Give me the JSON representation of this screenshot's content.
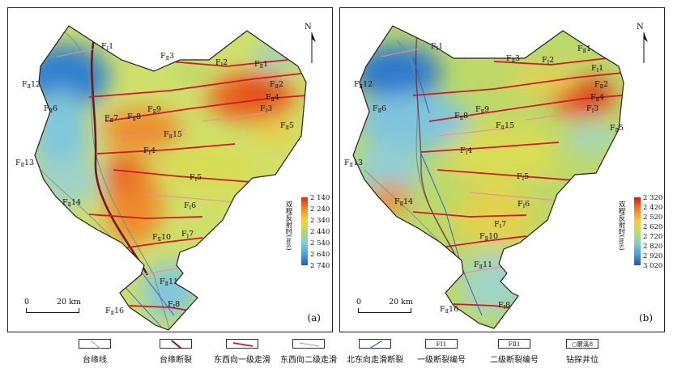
{
  "panel_a": {
    "tag": "(a)",
    "fault_labels": [
      {
        "main": "F",
        "sub": "Ⅰ",
        "num": "1"
      },
      {
        "main": "F",
        "sub": "Ⅱ",
        "num": "3"
      },
      {
        "main": "F",
        "sub": "Ⅰ",
        "num": "2"
      },
      {
        "main": "F",
        "sub": "Ⅱ",
        "num": "1"
      },
      {
        "main": "F",
        "sub": "Ⅱ",
        "num": "12"
      },
      {
        "main": "F",
        "sub": "Ⅱ",
        "num": "2"
      },
      {
        "main": "F",
        "sub": "Ⅱ",
        "num": "4"
      },
      {
        "main": "F",
        "sub": "Ⅱ",
        "num": "6"
      },
      {
        "main": "F",
        "sub": "Ⅰ",
        "num": "3"
      },
      {
        "main": "F",
        "sub": "Ⅱ",
        "num": "9"
      },
      {
        "main": "F",
        "sub": "Ⅱ",
        "num": "7"
      },
      {
        "main": "F",
        "sub": "Ⅱ",
        "num": "8"
      },
      {
        "main": "F",
        "sub": "Ⅱ",
        "num": "5"
      },
      {
        "main": "F",
        "sub": "Ⅱ",
        "num": "15"
      },
      {
        "main": "F",
        "sub": "Ⅰ",
        "num": "4"
      },
      {
        "main": "F",
        "sub": "Ⅱ",
        "num": "13"
      },
      {
        "main": "F",
        "sub": "Ⅰ",
        "num": "5"
      },
      {
        "main": "F",
        "sub": "Ⅱ",
        "num": "14"
      },
      {
        "main": "F",
        "sub": "Ⅰ",
        "num": "6"
      },
      {
        "main": "F",
        "sub": "Ⅱ",
        "num": "10"
      },
      {
        "main": "F",
        "sub": "Ⅰ",
        "num": "7"
      },
      {
        "main": "F",
        "sub": "Ⅱ",
        "num": "11"
      },
      {
        "main": "F",
        "sub": "Ⅰ",
        "num": "8"
      },
      {
        "main": "F",
        "sub": "Ⅱ",
        "num": "16"
      }
    ],
    "colorbar": {
      "title": "双程反射时(ms)",
      "ticks": [
        "2 140",
        "2 240",
        "2 340",
        "2 440",
        "2 540",
        "2 640",
        "2 740"
      ],
      "colors": [
        "#e02c10",
        "#f08a28",
        "#f1d43a",
        "#b5d86a",
        "#7fcfd6",
        "#4fa2dc",
        "#1a5fb8"
      ]
    }
  },
  "panel_b": {
    "tag": "(b)",
    "fault_labels": [
      {
        "main": "F",
        "sub": "Ⅰ",
        "num": "1"
      },
      {
        "main": "F",
        "sub": "Ⅱ",
        "num": "3"
      },
      {
        "main": "F",
        "sub": "Ⅰ",
        "num": "2"
      },
      {
        "main": "F",
        "sub": "Ⅱ",
        "num": "1"
      },
      {
        "main": "F",
        "sub": "Ⅱ",
        "num": "12"
      },
      {
        "main": "F",
        "sub": "Ⅰ",
        "num": "1"
      },
      {
        "main": "F",
        "sub": "Ⅱ",
        "num": "2"
      },
      {
        "main": "F",
        "sub": "Ⅱ",
        "num": "4"
      },
      {
        "main": "F",
        "sub": "Ⅱ",
        "num": "6"
      },
      {
        "main": "F",
        "sub": "Ⅰ",
        "num": "3"
      },
      {
        "main": "F",
        "sub": "Ⅱ",
        "num": "9"
      },
      {
        "main": "F",
        "sub": "Ⅱ",
        "num": "8"
      },
      {
        "main": "F",
        "sub": "Ⅱ",
        "num": "5"
      },
      {
        "main": "F",
        "sub": "Ⅱ",
        "num": "15"
      },
      {
        "main": "F",
        "sub": "Ⅰ",
        "num": "4"
      },
      {
        "main": "F",
        "sub": "Ⅱ",
        "num": "13"
      },
      {
        "main": "F",
        "sub": "Ⅰ",
        "num": "5"
      },
      {
        "main": "F",
        "sub": "Ⅱ",
        "num": "14"
      },
      {
        "main": "F",
        "sub": "Ⅰ",
        "num": "6"
      },
      {
        "main": "F",
        "sub": "Ⅰ",
        "num": "7"
      },
      {
        "main": "F",
        "sub": "Ⅱ",
        "num": "10"
      },
      {
        "main": "F",
        "sub": "Ⅱ",
        "num": "11"
      },
      {
        "main": "F",
        "sub": "Ⅰ",
        "num": "8"
      },
      {
        "main": "F",
        "sub": "Ⅱ",
        "num": "16"
      }
    ],
    "colorbar": {
      "title": "双程反射时(ms)",
      "ticks": [
        "2 320",
        "2 420",
        "2 520",
        "2 620",
        "2 720",
        "2 820",
        "2 920",
        "3 020"
      ],
      "colors": [
        "#d11a10",
        "#ef7a25",
        "#f2c93d",
        "#c5dc62",
        "#86cfc9",
        "#4c9fdb",
        "#1858b4"
      ]
    }
  },
  "north_label": "N",
  "scale_bar": {
    "start": "0",
    "end": "20 km"
  },
  "legend": [
    {
      "label": "台缘线",
      "symbol": "platform-margin-line",
      "color": "#8aa4a0"
    },
    {
      "label": "台缘断裂",
      "symbol": "platform-margin-fault",
      "color": "#8b1020"
    },
    {
      "label": "东西向一级走滑",
      "symbol": "ew-first-order-strike-slip",
      "color": "#d8142a"
    },
    {
      "label": "东西向二级走滑",
      "symbol": "ew-second-order-strike-slip",
      "color": "#f07a8a"
    },
    {
      "label": "北东向走滑断裂",
      "symbol": "ne-strike-slip-fault",
      "color": "#3c5cc8"
    },
    {
      "label": "一级断裂编号",
      "symbol": "first-order-fault-number",
      "box_text": "FⅠ1"
    },
    {
      "label": "二级断裂编号",
      "symbol": "second-order-fault-number",
      "box_text": "FⅡ1"
    },
    {
      "label": "钻探井位",
      "symbol": "drill-well",
      "box_text": "○蘑溪8"
    }
  ]
}
